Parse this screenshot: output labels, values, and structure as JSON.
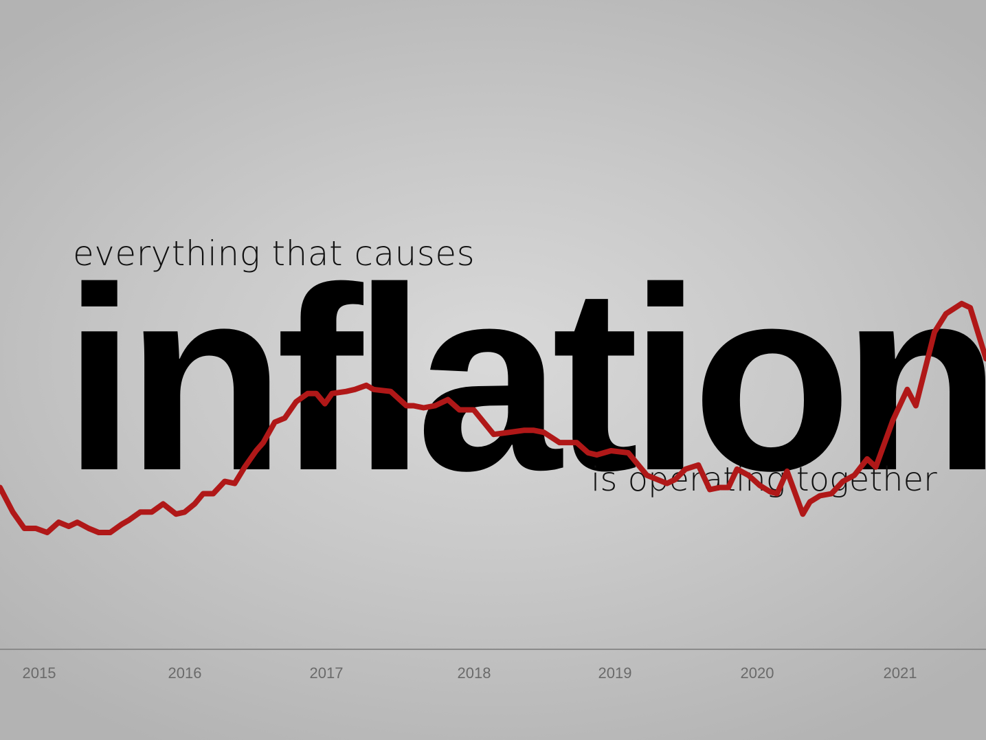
{
  "headline": {
    "top": "everything that causes",
    "main": "inflation",
    "bottom": "is operating together"
  },
  "colors": {
    "line": "#b01818",
    "axis": "#8a8a8a",
    "tick_text": "#6a6a6a",
    "text": "#000000"
  },
  "chart_data": {
    "type": "line",
    "title": "",
    "xlabel": "",
    "ylabel": "",
    "x_tick_labels": [
      "2015",
      "2016",
      "2017",
      "2018",
      "2019",
      "2020",
      "2021"
    ],
    "xlim": [
      2014.73,
      2021.62
    ],
    "ylim": [
      -1,
      6
    ],
    "grid": false,
    "series": [
      {
        "x": [
          2014.73,
          2014.82,
          2014.9,
          2014.98,
          2015.06,
          2015.14,
          2015.21,
          2015.27,
          2015.35,
          2015.42,
          2015.5,
          2015.58,
          2015.63,
          2015.71,
          2015.79,
          2015.87,
          2015.96,
          2016.02,
          2016.09,
          2016.15,
          2016.22,
          2016.3,
          2016.37,
          2016.44,
          2016.52,
          2016.57,
          2016.65,
          2016.72,
          2016.8,
          2016.88,
          2016.94,
          2017.0,
          2017.05,
          2017.15,
          2017.21,
          2017.29,
          2017.34,
          2017.46,
          2017.57,
          2017.62,
          2017.69,
          2017.77,
          2017.86,
          2017.94,
          2018.04,
          2018.11,
          2018.18,
          2018.29,
          2018.39,
          2018.46,
          2018.53,
          2018.64,
          2018.76,
          2018.84,
          2018.9,
          2019.0,
          2019.12,
          2019.25,
          2019.39,
          2019.45,
          2019.52,
          2019.61,
          2019.69,
          2019.76,
          2019.82,
          2019.88,
          2019.96,
          2020.04,
          2020.11,
          2020.16,
          2020.23,
          2020.34,
          2020.39,
          2020.46,
          2020.54,
          2020.62,
          2020.7,
          2020.79,
          2020.85,
          2020.97,
          2021.07,
          2021.13,
          2021.26,
          2021.34,
          2021.45,
          2021.51,
          2021.62
        ],
        "y": [
          1.6,
          1.0,
          0.6,
          0.6,
          0.5,
          0.75,
          0.65,
          0.75,
          0.6,
          0.5,
          0.5,
          0.7,
          0.8,
          1.0,
          1.0,
          1.2,
          0.95,
          1.0,
          1.2,
          1.45,
          1.45,
          1.75,
          1.7,
          2.1,
          2.5,
          2.7,
          3.2,
          3.3,
          3.7,
          3.9,
          3.9,
          3.65,
          3.9,
          3.95,
          4.0,
          4.1,
          4.0,
          3.95,
          3.6,
          3.6,
          3.55,
          3.6,
          3.75,
          3.5,
          3.5,
          3.2,
          2.9,
          2.95,
          3.0,
          3.0,
          2.95,
          2.7,
          2.7,
          2.45,
          2.4,
          2.5,
          2.45,
          1.9,
          1.7,
          1.8,
          2.05,
          2.15,
          1.55,
          1.6,
          1.6,
          2.05,
          1.9,
          1.65,
          1.5,
          1.45,
          2.0,
          0.95,
          1.25,
          1.4,
          1.45,
          1.75,
          1.9,
          2.3,
          2.1,
          3.25,
          4.0,
          3.6,
          5.4,
          5.85,
          6.1,
          6.0,
          4.75
        ]
      }
    ]
  }
}
